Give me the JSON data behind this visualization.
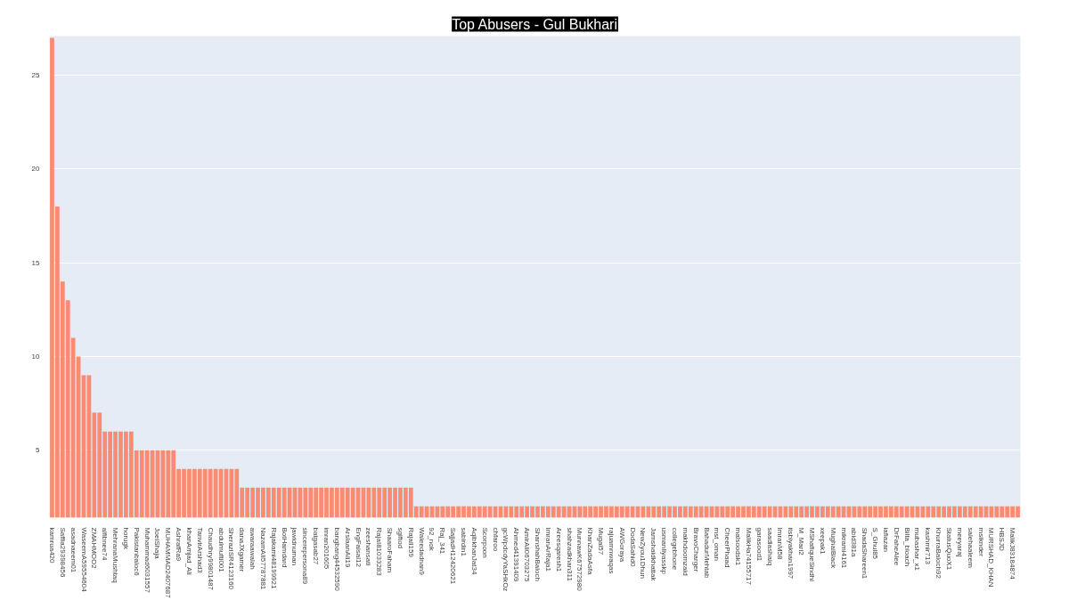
{
  "chart_data": {
    "type": "bar",
    "title": "Top Abusers - Gul Bukhari",
    "categories": [
      "kamrua420",
      null,
      "Saffia29398456",
      null,
      "asadnaeem01",
      null,
      "WaseemA59554604",
      null,
      "ZMAHMOO2",
      null,
      "alfibnee74",
      null,
      "MehranaMushtaq",
      null,
      "horugk",
      null,
      "Pakistanbaloc6",
      null,
      "Muhammad6031557",
      null,
      "JoeiShaja",
      null,
      "MUHAMMAD2407687",
      null,
      "AshrafRa9",
      null,
      "khanAmjad_Ali",
      null,
      "TanvirArshad3",
      null,
      "Chaudhry99801487",
      null,
      "abdulmufti001",
      null,
      "SheraziSR4123160",
      null,
      "danaJXgamer",
      null,
      "awaraawalah",
      null,
      "NazamAli57787881",
      null,
      "Rajakami48199921",
      null,
      "BotHamdard",
      null,
      "jawidnuman",
      null,
      "sincerepersona89",
      null,
      "batgasab27",
      null,
      "imran201605",
      null,
      "bangbang44532590",
      null,
      "ArslaanAli19",
      null,
      "EngFaisal12",
      null,
      "zeeshansati",
      null,
      "RajaI81033283",
      null,
      "ShaaroFaham",
      null,
      "sgiftod",
      null,
      "Rajall159",
      null,
      "Waleedadnan9",
      null,
      "92_nok",
      null,
      "Raj_341",
      null,
      "SajjadH12420621",
      null,
      "sabirdin1",
      null,
      "AqibkhanJat34",
      null,
      "Scorpoon",
      null,
      "chfaroo",
      null,
      "gcWpdcdyYaSHkOz",
      null,
      "Ahmed41391409",
      null,
      "AmirAli06703275",
      null,
      "ShanshahBaloch",
      null,
      "ImranArRaja1",
      null,
      "Areesqaresh1",
      null,
      "shahzadkhan311",
      null,
      "MunnawK67572980",
      null,
      "KhanZadaAsfa",
      null,
      "Mugal57",
      null,
      "rajuamnwaqas",
      null,
      "AWGoraya",
      null,
      "DodaSahid0",
      null,
      "NewZyou1Dhun",
      null,
      "Jamshaidkhattak",
      null,
      "usmanliyasskp",
      null,
      "collegebhone",
      null,
      "makhdoomzaid",
      null,
      "BravoCharger",
      null,
      "BahadurMehtab",
      null,
      "mst_oman",
      null,
      "CheerPhaad",
      null,
      "malsoodsk1",
      null,
      "MalikHa74155717",
      null,
      "garasood1",
      null,
      "saadiashaiq",
      null,
      "ImranM58",
      null,
      "itsbiyakhan1997",
      null,
      "M_Mari2",
      null,
      "MShafiqueSindhi",
      null,
      "xeepak1",
      null,
      "MughalBlack",
      null,
      "mikrami4161",
      null,
      "abid381a",
      null,
      "ShadaShareen1",
      null,
      "S_Ghul85",
      null,
      "iafiazan",
      null,
      "DrFaheAlee",
      null,
      "Bilta_bloach",
      null,
      "mubashar_x1",
      null,
      "kashmir713",
      null,
      "KhurraBaloch92",
      null,
      "StatusQuoX1",
      null,
      "meeyaraj",
      null,
      "salehaaleem",
      null,
      "msiknder",
      null,
      "MURSHAD_KHAN",
      null,
      "HBSJD",
      null,
      "MalikJ83184874",
      null
    ],
    "values": [
      27,
      18,
      14,
      13,
      11,
      10,
      9,
      9,
      7,
      7,
      6,
      6,
      6,
      6,
      6,
      6,
      5,
      5,
      5,
      5,
      5,
      5,
      5,
      5,
      4,
      4,
      4,
      4,
      4,
      4,
      4,
      4,
      4,
      4,
      4,
      4,
      3,
      3,
      3,
      3,
      3,
      3,
      3,
      3,
      3,
      3,
      3,
      3,
      3,
      3,
      3,
      3,
      3,
      3,
      3,
      3,
      3,
      3,
      3,
      3,
      3,
      3,
      3,
      3,
      3,
      3,
      3,
      3,
      3,
      2,
      2,
      2,
      2,
      2,
      2,
      2,
      2,
      2,
      2,
      2,
      2,
      2,
      2,
      2,
      2,
      2,
      2,
      2,
      2,
      2,
      2,
      2,
      2,
      2,
      2,
      2,
      2,
      2,
      2,
      2,
      2,
      2,
      2,
      2,
      2,
      2,
      2,
      2,
      2,
      2,
      2,
      2,
      2,
      2,
      2,
      2,
      2,
      2,
      2,
      2,
      2,
      2,
      2,
      2,
      2,
      2,
      2,
      2,
      2,
      2,
      2,
      2,
      2,
      2,
      2,
      2,
      2,
      2,
      2,
      2,
      2,
      2,
      2,
      2,
      2,
      2,
      2,
      2,
      2,
      2,
      2,
      2,
      2,
      2,
      2,
      2,
      2,
      2,
      2,
      2,
      2,
      2,
      2,
      2,
      2,
      2,
      2,
      2,
      2,
      2,
      2,
      2,
      2,
      2,
      2,
      2,
      2,
      2,
      2,
      2,
      2,
      2,
      2,
      2
    ],
    "color": "#f98b72",
    "ylim": [
      1.4,
      27.1
    ],
    "yticks": [
      5,
      10,
      15,
      20,
      25
    ],
    "grid": "y"
  }
}
